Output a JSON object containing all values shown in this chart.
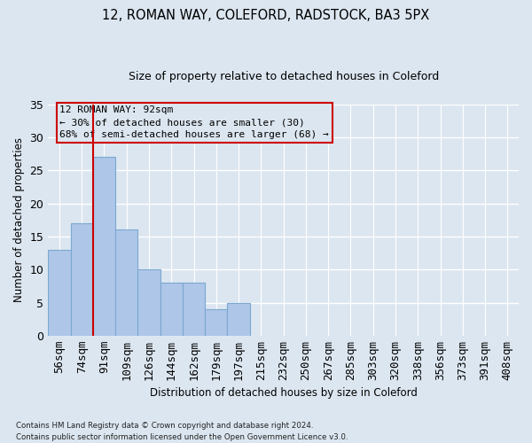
{
  "title1": "12, ROMAN WAY, COLEFORD, RADSTOCK, BA3 5PX",
  "title2": "Size of property relative to detached houses in Coleford",
  "xlabel": "Distribution of detached houses by size in Coleford",
  "ylabel": "Number of detached properties",
  "bar_categories": [
    "56sqm",
    "74sqm",
    "91sqm",
    "109sqm",
    "126sqm",
    "144sqm",
    "162sqm",
    "179sqm",
    "197sqm",
    "215sqm",
    "232sqm",
    "250sqm",
    "267sqm",
    "285sqm",
    "303sqm",
    "320sqm",
    "338sqm",
    "356sqm",
    "373sqm",
    "391sqm",
    "408sqm"
  ],
  "bar_values": [
    13,
    17,
    27,
    16,
    10,
    8,
    8,
    4,
    5,
    0,
    0,
    0,
    0,
    0,
    0,
    0,
    0,
    0,
    0,
    0,
    0
  ],
  "bar_color": "#aec6e8",
  "bar_edge_color": "#7aa8d0",
  "vline_color": "#cc0000",
  "vline_x_idx": 2,
  "ylim": [
    0,
    35
  ],
  "yticks": [
    0,
    5,
    10,
    15,
    20,
    25,
    30,
    35
  ],
  "annotation_text": "12 ROMAN WAY: 92sqm\n← 30% of detached houses are smaller (30)\n68% of semi-detached houses are larger (68) →",
  "annotation_box_color": "#cc0000",
  "background_color": "#dce6f0",
  "grid_color": "#ffffff",
  "footer1": "Contains HM Land Registry data © Crown copyright and database right 2024.",
  "footer2": "Contains public sector information licensed under the Open Government Licence v3.0."
}
